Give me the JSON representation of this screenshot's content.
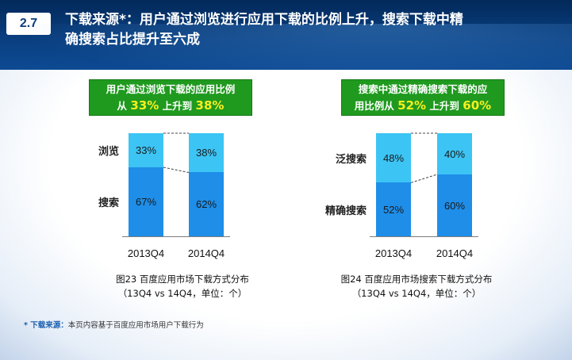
{
  "header": {
    "section_number": "2.7",
    "title_line1": "下载来源*：用户通过浏览进行应用下载的比例上升，搜索下载中精",
    "title_line2": "确搜索占比提升至六成"
  },
  "left_panel": {
    "callout": {
      "line1": "用户通过浏览下载的应用比例",
      "line2_prefix": "从 ",
      "from_value": "33%",
      "line2_mid": " 上升到 ",
      "to_value": "38%"
    },
    "caption_line1": "图23 百度应用市场下载方式分布",
    "caption_line2": "（13Q4 vs 14Q4，单位：个）"
  },
  "right_panel": {
    "callout": {
      "line1": "搜索中通过精确搜索下载的应",
      "line2_prefix": "用比例从 ",
      "from_value": "52%",
      "line2_mid": " 上升到 ",
      "to_value": "60%"
    },
    "caption_line1": "图24 百度应用市场搜索下载方式分布",
    "caption_line2": "（13Q4 vs 14Q4，单位：个）"
  },
  "footnote": {
    "label": "* 下载来源：",
    "text": "本页内容基于百度应用市场用户下载行为"
  },
  "colors": {
    "top_segment": "#3cc4f4",
    "bottom_segment": "#1e8ee9",
    "callout_bg": "#1f9a1f",
    "highlight": "#f7ef1e"
  },
  "chart_data": [
    {
      "type": "bar",
      "stacked": true,
      "categories": [
        "2013Q4",
        "2014Q4"
      ],
      "series": [
        {
          "name": "搜索",
          "values": [
            67,
            62
          ],
          "labels": [
            "67%",
            "62%"
          ]
        },
        {
          "name": "浏览",
          "values": [
            33,
            38
          ],
          "labels": [
            "33%",
            "38%"
          ]
        }
      ],
      "ylim": [
        0,
        100
      ]
    },
    {
      "type": "bar",
      "stacked": true,
      "categories": [
        "2013Q4",
        "2014Q4"
      ],
      "series": [
        {
          "name": "精确搜索",
          "values": [
            52,
            60
          ],
          "labels": [
            "52%",
            "60%"
          ]
        },
        {
          "name": "泛搜索",
          "values": [
            48,
            40
          ],
          "labels": [
            "48%",
            "40%"
          ]
        }
      ],
      "ylim": [
        0,
        100
      ]
    }
  ]
}
